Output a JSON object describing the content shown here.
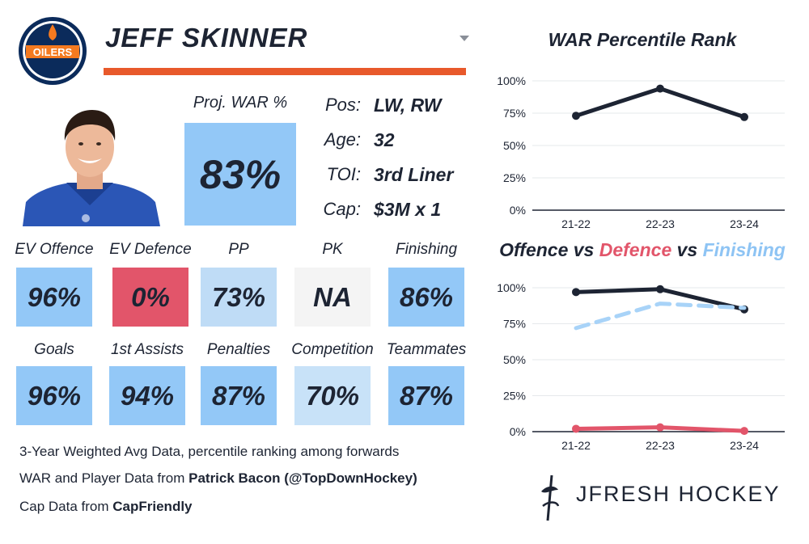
{
  "header": {
    "team_logo_text": "OILERS",
    "player_name": "JEFF SKINNER"
  },
  "proj_war": {
    "label": "Proj. WAR %",
    "value": "83%",
    "color": "#93c8f7"
  },
  "info": [
    {
      "label": "Pos:",
      "value": "LW, RW"
    },
    {
      "label": "Age:",
      "value": "32"
    },
    {
      "label": "TOI:",
      "value": "3rd Liner"
    },
    {
      "label": "Cap:",
      "value": "$3M x 1"
    }
  ],
  "tiles_row1": [
    {
      "label": "EV Offence",
      "value": "96%",
      "color": "#93c8f7"
    },
    {
      "label": "EV Defence",
      "value": "0%",
      "color": "#e2556a"
    },
    {
      "label": "PP",
      "value": "73%",
      "color": "#bfdcf6"
    },
    {
      "label": "PK",
      "value": "NA",
      "color": "#f4f4f4"
    },
    {
      "label": "Finishing",
      "value": "86%",
      "color": "#93c8f7"
    }
  ],
  "tiles_row2": [
    {
      "label": "Goals",
      "value": "96%",
      "color": "#93c8f7"
    },
    {
      "label": "1st Assists",
      "value": "94%",
      "color": "#93c8f7"
    },
    {
      "label": "Penalties",
      "value": "87%",
      "color": "#93c8f7"
    },
    {
      "label": "Competition",
      "value": "70%",
      "color": "#c8e2f8"
    },
    {
      "label": "Teammates",
      "value": "87%",
      "color": "#93c8f7"
    }
  ],
  "footer": {
    "line1": "3-Year Weighted Avg Data, percentile ranking among forwards",
    "line2_prefix": "WAR and Player Data from ",
    "line2_bold": "Patrick Bacon (@TopDownHockey)",
    "line3_prefix": "Cap Data from ",
    "line3_bold": "CapFriendly"
  },
  "brand": {
    "name": "JFRESH HOCKEY"
  },
  "chart_data": [
    {
      "type": "line",
      "title": "WAR Percentile Rank",
      "x": [
        "21-22",
        "22-23",
        "23-24"
      ],
      "yticks": [
        "0%",
        "25%",
        "50%",
        "75%",
        "100%"
      ],
      "ylim": [
        0,
        100
      ],
      "grid": true,
      "series": [
        {
          "values": [
            73,
            94,
            72
          ],
          "color": "#1d2433",
          "dash": false
        }
      ]
    },
    {
      "type": "line",
      "title_parts": [
        {
          "text": "Offence",
          "color": "#1d2433"
        },
        {
          "text": " vs ",
          "color": "#1d2433"
        },
        {
          "text": "Defence",
          "color": "#e2556a"
        },
        {
          "text": " vs ",
          "color": "#1d2433"
        },
        {
          "text": "Finishing",
          "color": "#8ec4f4"
        }
      ],
      "x": [
        "21-22",
        "22-23",
        "23-24"
      ],
      "yticks": [
        "0%",
        "25%",
        "50%",
        "75%",
        "100%"
      ],
      "ylim": [
        0,
        100
      ],
      "grid": true,
      "series": [
        {
          "values": [
            97,
            99,
            85
          ],
          "color": "#1d2433",
          "dash": false
        },
        {
          "values": [
            72,
            89,
            86
          ],
          "color": "#a8d3f8",
          "dash": true
        },
        {
          "values": [
            2,
            3,
            0.5
          ],
          "color": "#e2556a",
          "dash": false
        }
      ]
    }
  ]
}
